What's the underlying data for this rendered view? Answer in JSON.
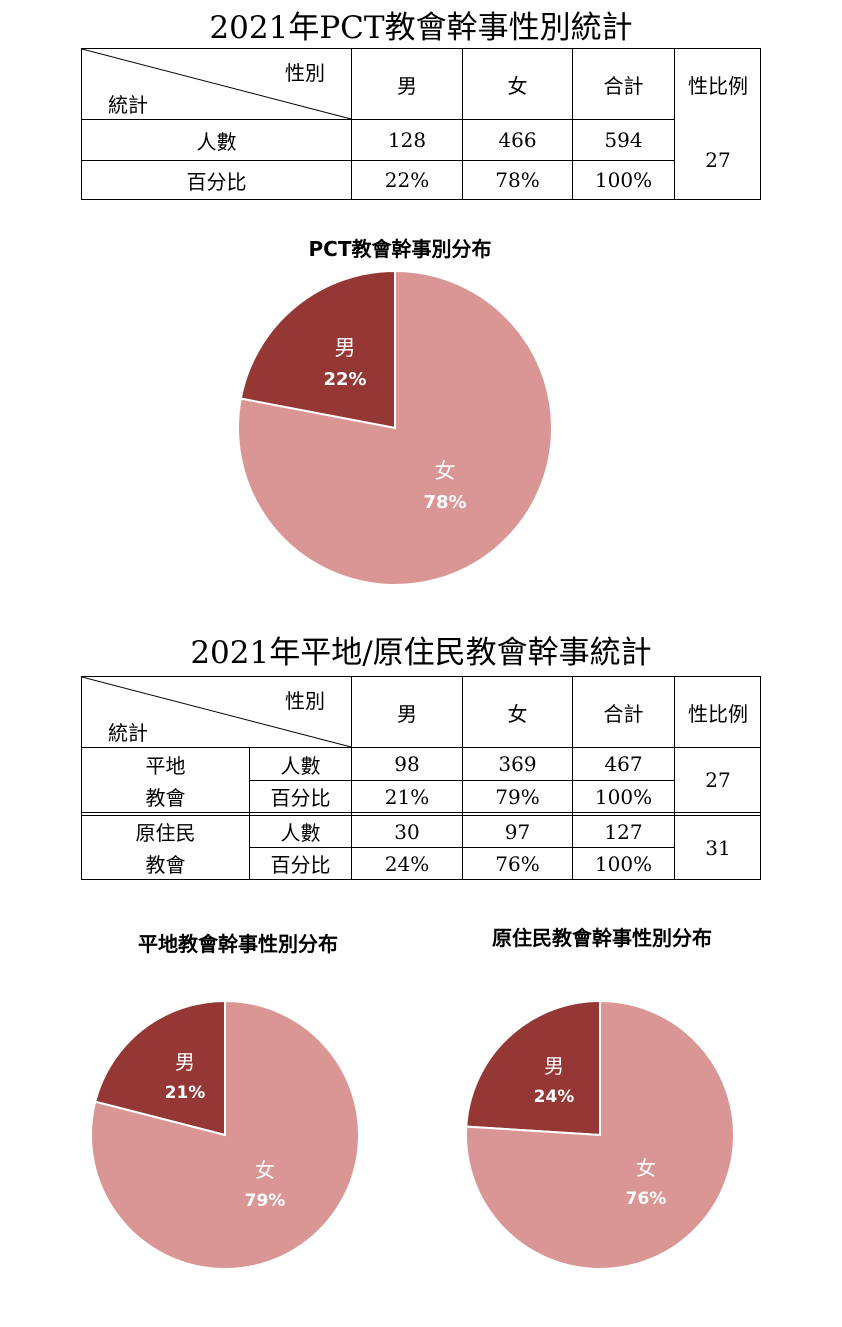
{
  "table1": {
    "title": "2021年PCT教會幹事性別統計",
    "corner_top": "性別",
    "corner_bottom": "統計",
    "headers": [
      "男",
      "女",
      "合計",
      "性比例"
    ],
    "rows": [
      {
        "label": "人數",
        "male": "128",
        "female": "466",
        "total": "594"
      },
      {
        "label": "百分比",
        "male": "22%",
        "female": "78%",
        "total": "100%"
      }
    ],
    "ratio": "27"
  },
  "table2": {
    "title": "2021年平地/原住民教會幹事統計",
    "corner_top": "性別",
    "corner_bottom": "統計",
    "headers": [
      "男",
      "女",
      "合計",
      "性比例"
    ],
    "groups": [
      {
        "name_line1": "平地",
        "name_line2": "教會",
        "rows": [
          {
            "label": "人數",
            "male": "98",
            "female": "369",
            "total": "467"
          },
          {
            "label": "百分比",
            "male": "21%",
            "female": "79%",
            "total": "100%"
          }
        ],
        "ratio": "27"
      },
      {
        "name_line1": "原住民",
        "name_line2": "教會",
        "rows": [
          {
            "label": "人數",
            "male": "30",
            "female": "97",
            "total": "127"
          },
          {
            "label": "百分比",
            "male": "24%",
            "female": "76%",
            "total": "100%"
          }
        ],
        "ratio": "31"
      }
    ]
  },
  "colors": {
    "male": "#953735",
    "female": "#d99694"
  },
  "chart_data": [
    {
      "type": "pie",
      "title": "PCT教會幹事別分布",
      "slices": [
        {
          "label": "男",
          "value": 22,
          "display": "22%"
        },
        {
          "label": "女",
          "value": 78,
          "display": "78%"
        }
      ]
    },
    {
      "type": "pie",
      "title": "平地教會幹事性別分布",
      "slices": [
        {
          "label": "男",
          "value": 21,
          "display": "21%"
        },
        {
          "label": "女",
          "value": 79,
          "display": "79%"
        }
      ]
    },
    {
      "type": "pie",
      "title": "原住民教會幹事性別分布",
      "slices": [
        {
          "label": "男",
          "value": 24,
          "display": "24%"
        },
        {
          "label": "女",
          "value": 76,
          "display": "76%"
        }
      ]
    }
  ]
}
